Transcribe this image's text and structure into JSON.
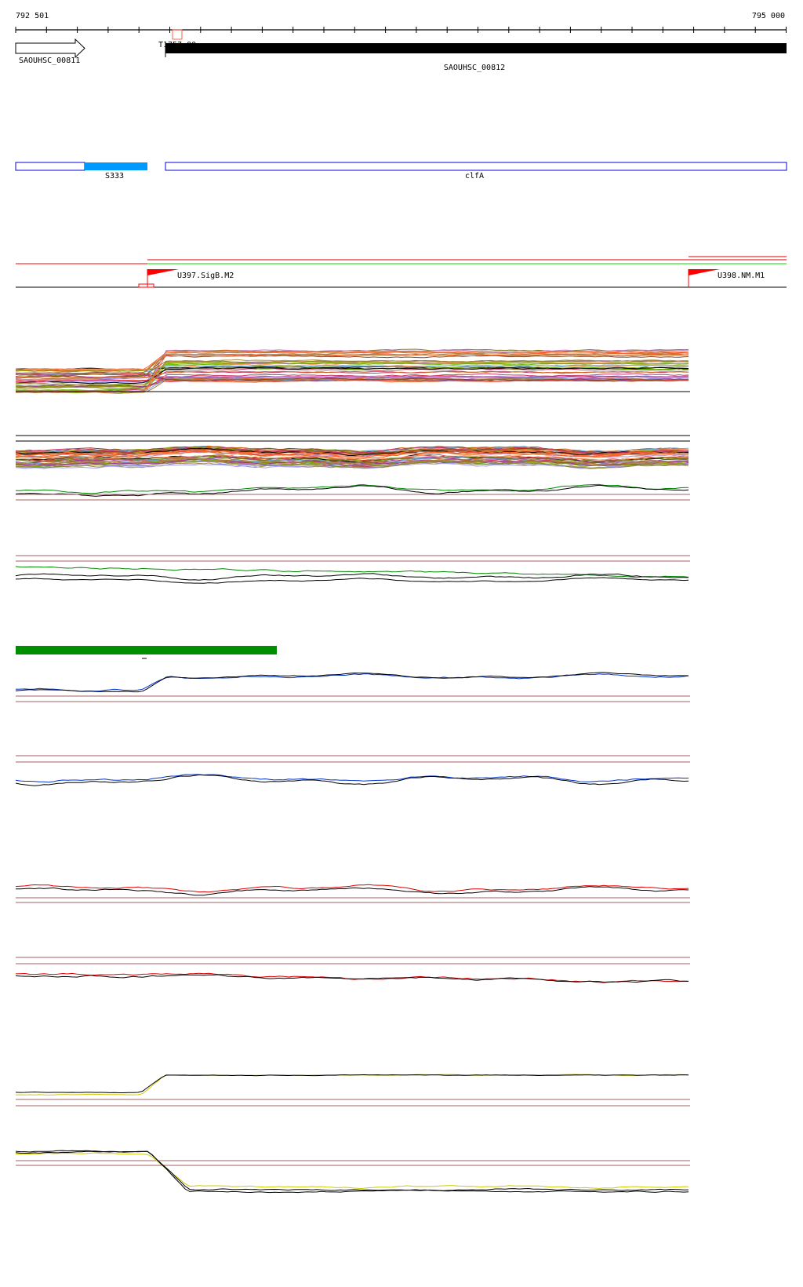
{
  "ruler": {
    "start_label": "792 501",
    "end_label": "795 000"
  },
  "genes": {
    "left_gene": "SAOUHSC_00811",
    "right_gene": "SAOUHSC_00812",
    "partial_label": "T1757.00"
  },
  "features": {
    "left_feature": "S333",
    "right_feature": "clfA",
    "feature_fill_color": "#0099ff",
    "feature_border_color": "#0000dd"
  },
  "promoters": {
    "left": "U397.SigB.M2",
    "right": "U398.NM.M1",
    "flag_color": "#ff0000"
  },
  "colors": {
    "threshold_line": "#a06060",
    "panel2_highlight": "#008800",
    "panel3_highlight": "#008800",
    "panel4_highlight": "#0033cc",
    "panel5_highlight": "#0033cc",
    "panel6_highlight": "#dd0000",
    "panel7_highlight": "#dd0000",
    "panel8_highlight": "#cccc00",
    "panel9_highlight": "#cccc00",
    "green_bar": "#008f00"
  }
}
